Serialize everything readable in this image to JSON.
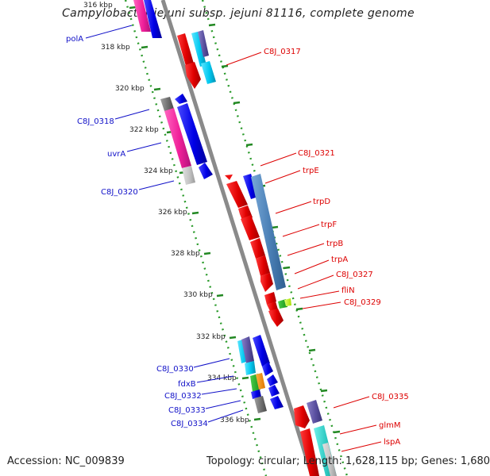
{
  "title": "Campylobacter jejuni subsp. jejuni 81116, complete genome",
  "accession_text": "Accession: NC_009839",
  "summary_text": "Topology: circular; Length: 1,628,115 bp; Genes: 1,680",
  "kbp_ticks": [
    "316 kbp",
    "318 kbp",
    "320 kbp",
    "322 kbp",
    "324 kbp",
    "326 kbp",
    "328 kbp",
    "330 kbp",
    "332 kbp",
    "334 kbp",
    "336 kbp"
  ],
  "left_labels": [
    "polA",
    "C8J_0318",
    "uvrA",
    "C8J_0320",
    "C8J_0330",
    "fdxB",
    "C8J_0332",
    "C8J_0333",
    "C8J_0334"
  ],
  "right_labels": [
    "C8J_0317",
    "C8J_0321",
    "trpE",
    "trpD",
    "trpF",
    "trpB",
    "trpA",
    "C8J_0327",
    "fliN",
    "C8J_0329",
    "C8J_0335",
    "glmM",
    "lspA"
  ],
  "colors": {
    "backbone": "#8a8a8a",
    "left_label": "#1010c8",
    "right_label": "#dd0000",
    "dots": "#2a9a2a",
    "forward_gene": "#ee1111",
    "reverse_gene": "#1111ee"
  }
}
